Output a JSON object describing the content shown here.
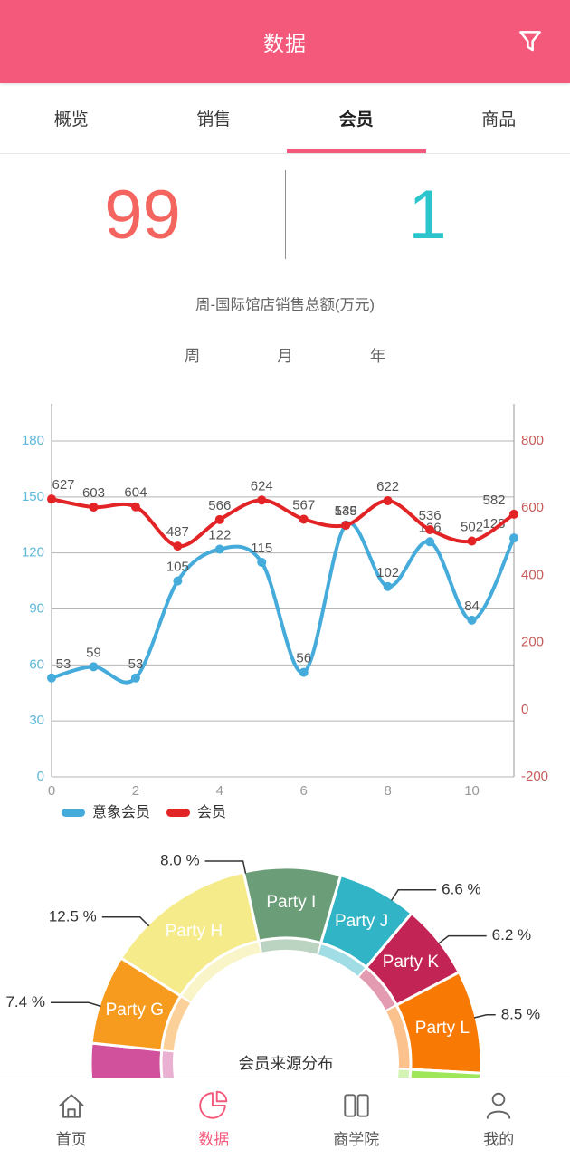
{
  "header": {
    "title": "数据",
    "filter_icon": "funnel-icon"
  },
  "tabs": {
    "items": [
      "概览",
      "销售",
      "会员",
      "商品"
    ],
    "active_index": 2
  },
  "stats": {
    "left_value": "99",
    "right_value": "1"
  },
  "subtitle": "周-国际馆店销售总额(万元)",
  "period_selector": {
    "options": [
      "周",
      "月",
      "年"
    ],
    "selected": "周"
  },
  "chart_data": [
    {
      "type": "line",
      "x": [
        0,
        1,
        2,
        3,
        4,
        5,
        6,
        7,
        8,
        9,
        10,
        11
      ],
      "x_tick_labels": [
        "0",
        "2",
        "4",
        "6",
        "8",
        "10"
      ],
      "series": [
        {
          "name": "意象会员",
          "color": "#45ABDB",
          "axis": "left",
          "values": [
            53,
            59,
            53,
            105,
            122,
            115,
            56,
            135,
            102,
            126,
            84,
            128
          ]
        },
        {
          "name": "会员",
          "color": "#E32426",
          "axis": "right",
          "values": [
            627,
            603,
            604,
            487,
            566,
            624,
            567,
            549,
            622,
            536,
            502,
            582
          ]
        }
      ],
      "left_axis": {
        "min": 0,
        "max": 180,
        "ticks": [
          0,
          30,
          60,
          90,
          120,
          150,
          180
        ],
        "label_color": "#5FB8D8"
      },
      "right_axis": {
        "min": -200,
        "max": 800,
        "ticks": [
          -200,
          0,
          200,
          400,
          600,
          800
        ],
        "label_color": "#C75B5B"
      },
      "value_label_color": "#555555",
      "grid": true,
      "smooth": true,
      "legend_position": "bottom-left"
    },
    {
      "type": "pie",
      "title": "会员来源分布",
      "start_angle_deg": 190,
      "inner_label_color": "#ffffff",
      "leader_color": "#333333",
      "slices": [
        {
          "name": null,
          "pct": 4.4,
          "color": "#D1519C",
          "labeled": false
        },
        {
          "name": "Party G",
          "pct": 7.4,
          "color": "#F79B1E",
          "labeled": true,
          "side": "left",
          "leader_deg": 163
        },
        {
          "name": "Party H",
          "pct": 12.5,
          "color": "#F5EB8A",
          "labeled": true,
          "side": "left",
          "leader_deg": 135
        },
        {
          "name": "Party I",
          "pct": 8.0,
          "color": "#6B9E78",
          "labeled": true,
          "side": "left",
          "leader_deg": 102
        },
        {
          "name": "Party J",
          "pct": 6.6,
          "color": "#31B5C6",
          "labeled": true,
          "side": "right",
          "leader_deg": 57
        },
        {
          "name": "Party K",
          "pct": 6.2,
          "color": "#C22455",
          "labeled": true,
          "side": "right",
          "leader_deg": 38
        },
        {
          "name": "Party L",
          "pct": 8.5,
          "color": "#F87A04",
          "labeled": true,
          "side": "right",
          "leader_deg": 13.5,
          "len2": 10
        },
        {
          "name": null,
          "pct": 5.0,
          "color": "#9EE75B",
          "labeled": false
        }
      ]
    }
  ],
  "bottom_nav": {
    "active_color": "#F4597C",
    "inactive_color": "#666666",
    "active_index": 1,
    "items": [
      {
        "label": "首页",
        "icon": "home-icon"
      },
      {
        "label": "数据",
        "icon": "pie-chart-icon"
      },
      {
        "label": "商学院",
        "icon": "book-icon"
      },
      {
        "label": "我的",
        "icon": "user-icon"
      }
    ]
  }
}
